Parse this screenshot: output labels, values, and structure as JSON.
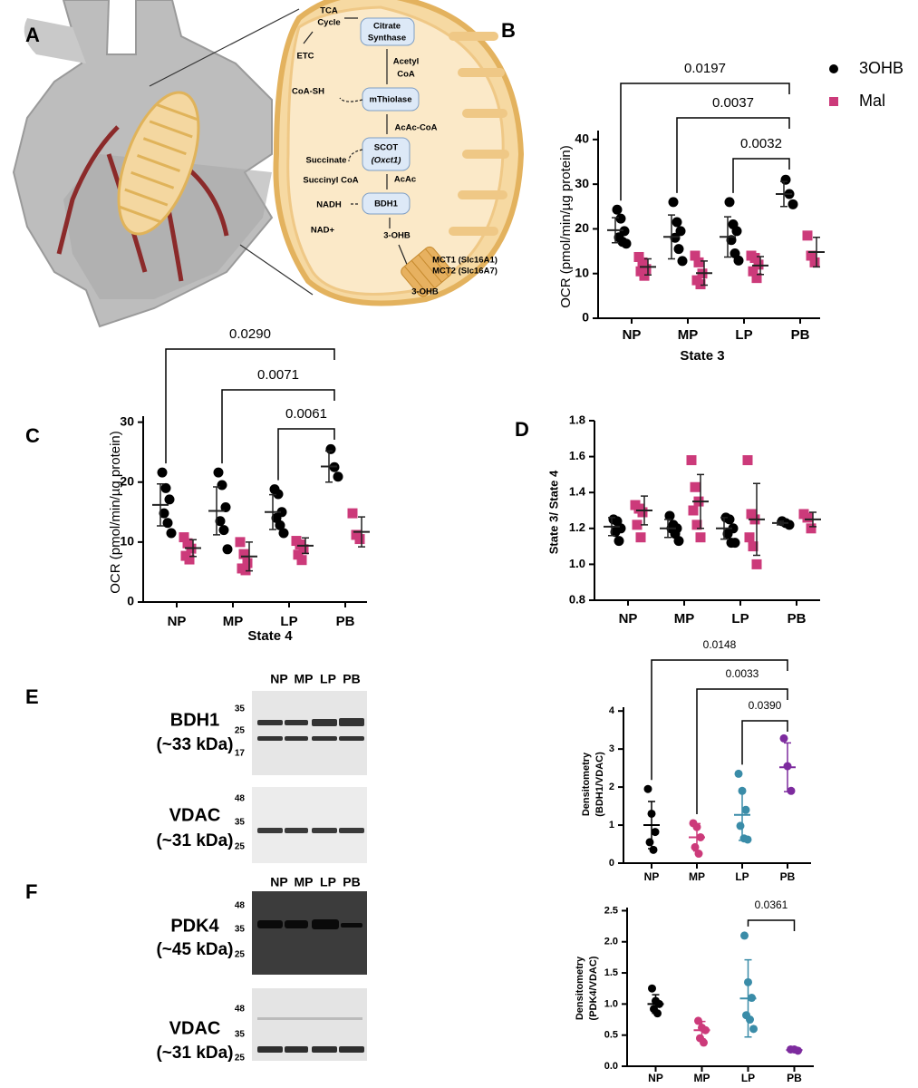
{
  "chart_data": [
    {
      "type": "dot",
      "ylabel": "OCR (pmol/min/µg protein)",
      "xlabel": "State 3",
      "legend": "right",
      "categories": [
        "NP",
        "MP",
        "LP",
        "PB"
      ],
      "ylim": [
        0,
        42
      ],
      "yticks": [
        0,
        10,
        20,
        30,
        40
      ],
      "annotations": [
        "0.0197",
        "0.0037",
        "0.0032"
      ],
      "series": [
        {
          "name": "3OHB",
          "color": "#000000",
          "marker": "circle",
          "points": [
            [
              24.3,
              22.3,
              19.5,
              18.1,
              17.1,
              16.7
            ],
            [
              26.0,
              21.5,
              19.5,
              18.0,
              15.5,
              12.8
            ],
            [
              26.0,
              21.0,
              19.5,
              17.5,
              14.5,
              12.9
            ],
            [
              31.0,
              27.8,
              25.5
            ]
          ],
          "means": [
            19.7,
            18.2,
            18.2,
            27.8
          ],
          "sds": [
            2.8,
            4.9,
            4.5,
            2.8
          ]
        },
        {
          "name": "Mal",
          "color": "#cc3a7a",
          "marker": "square",
          "points": [
            [
              13.7,
              12.5,
              11.0,
              10.5,
              9.5
            ],
            [
              14.0,
              12.5,
              10.0,
              8.5,
              7.6
            ],
            [
              14.0,
              13.5,
              12.0,
              10.5,
              9.0
            ],
            [
              18.5,
              14.0,
              12.5
            ]
          ],
          "means": [
            11.5,
            10.1,
            11.8,
            14.8
          ],
          "sds": [
            1.8,
            2.7,
            2.0,
            3.3
          ]
        }
      ]
    },
    {
      "type": "dot",
      "ylabel": "OCR (pmol/min/µg protein)",
      "xlabel": "State 4",
      "categories": [
        "NP",
        "MP",
        "LP",
        "PB"
      ],
      "ylim": [
        0,
        31
      ],
      "yticks": [
        0,
        10,
        20,
        30
      ],
      "annotations": [
        "0.0290",
        "0.0071",
        "0.0061"
      ],
      "series": [
        {
          "color": "#000000",
          "marker": "circle",
          "points": [
            [
              21.6,
              19.0,
              17.1,
              14.8,
              13.2,
              11.5
            ],
            [
              21.6,
              19.5,
              15.8,
              13.5,
              12.0,
              8.8
            ],
            [
              18.8,
              18.0,
              15.0,
              14.0,
              12.8,
              11.5
            ],
            [
              25.5,
              22.5,
              20.9
            ]
          ],
          "means": [
            16.2,
            15.2,
            15.0,
            22.6
          ],
          "sds": [
            3.5,
            4.0,
            2.9,
            2.6
          ]
        },
        {
          "color": "#cc3a7a",
          "marker": "square",
          "points": [
            [
              10.8,
              9.8,
              8.9,
              7.7,
              7.1
            ],
            [
              10.0,
              8.0,
              6.5,
              5.6,
              5.3
            ],
            [
              10.2,
              9.6,
              8.8,
              7.9,
              7.0
            ],
            [
              14.8,
              11.2,
              10.5
            ]
          ],
          "means": [
            9.0,
            7.6,
            9.4,
            11.7
          ],
          "sds": [
            1.4,
            2.4,
            1.3,
            2.5
          ]
        }
      ]
    },
    {
      "type": "dot",
      "ylabel": "State 3/ State 4",
      "categories": [
        "NP",
        "MP",
        "LP",
        "PB"
      ],
      "ylim": [
        0.8,
        1.8
      ],
      "yticks": [
        0.8,
        {
          "value": 1,
          "label": "1.0"
        },
        1.2,
        1.4,
        1.6,
        1.8
      ],
      "series": [
        {
          "color": "#000000",
          "marker": "circle",
          "points": [
            [
              1.25,
              1.24,
              1.2,
              1.18,
              1.13
            ],
            [
              1.27,
              1.22,
              1.2,
              1.2,
              1.17,
              1.13
            ],
            [
              1.26,
              1.25,
              1.2,
              1.17,
              1.12,
              1.12
            ],
            [
              1.24,
              1.23,
              1.22
            ]
          ],
          "means": [
            1.21,
            1.2,
            1.2,
            1.23
          ],
          "sds": [
            0.05,
            0.05,
            0.06,
            0.01
          ]
        },
        {
          "color": "#cc3a7a",
          "marker": "square",
          "points": [
            [
              1.33,
              1.31,
              1.29,
              1.22,
              1.15
            ],
            [
              1.58,
              1.43,
              1.35,
              1.3,
              1.22,
              1.15
            ],
            [
              1.58,
              1.28,
              1.25,
              1.15,
              1.1,
              1.0
            ],
            [
              1.28,
              1.26,
              1.2
            ]
          ],
          "means": [
            1.3,
            1.35,
            1.25,
            1.25
          ],
          "sds": [
            0.08,
            0.15,
            0.2,
            0.04
          ]
        }
      ]
    },
    {
      "type": "dot",
      "ylabel": [
        "Densitometry",
        "(BDH1/VDAC)"
      ],
      "categories": [
        "NP",
        "MP",
        "LP",
        "PB"
      ],
      "ylim": [
        0,
        4.1
      ],
      "yticks": [
        0,
        1,
        2,
        3,
        4
      ],
      "annotations": [
        "0.0148",
        "0.0033",
        "0.0390"
      ],
      "series": [
        {
          "colors": [
            "#000000",
            "#cc3a7a",
            "#3a8ca8",
            "#7d2b9e"
          ],
          "marker": "circle",
          "points": [
            [
              1.95,
              1.3,
              0.82,
              0.55,
              0.35
            ],
            [
              1.05,
              0.95,
              0.68,
              0.42,
              0.25
            ],
            [
              2.35,
              1.9,
              1.4,
              0.98,
              0.65,
              0.62
            ],
            [
              3.28,
              2.55,
              1.9
            ]
          ],
          "means": [
            1.0,
            0.68,
            1.27,
            2.52
          ],
          "sds": [
            0.62,
            0.36,
            0.67,
            0.64
          ]
        }
      ]
    },
    {
      "type": "dot",
      "ylabel": [
        "Densitometry",
        "(PDK4/VDAC)"
      ],
      "categories": [
        "NP",
        "MP",
        "LP",
        "PB"
      ],
      "ylim": [
        0,
        2.55
      ],
      "yticks": [
        {
          "value": 0,
          "label": "0.0"
        },
        0.5,
        {
          "value": 1,
          "label": "1.0"
        },
        1.5,
        {
          "value": 2,
          "label": "2.0"
        },
        2.5
      ],
      "annotations": [
        "0.0361"
      ],
      "series": [
        {
          "colors": [
            "#000000",
            "#cc3a7a",
            "#3a8ca8",
            "#7d2b9e"
          ],
          "marker": "circle",
          "points": [
            [
              1.25,
              1.05,
              1.0,
              0.92,
              0.85
            ],
            [
              0.73,
              0.62,
              0.58,
              0.45,
              0.38
            ],
            [
              2.1,
              1.35,
              1.1,
              0.82,
              0.75,
              0.6
            ],
            [
              0.27,
              0.27,
              0.25
            ]
          ],
          "means": [
            1.0,
            0.58,
            1.09,
            0.26
          ],
          "sds": [
            0.15,
            0.14,
            0.62,
            0.02
          ]
        }
      ]
    }
  ],
  "figure": {
    "panel_labels": [
      "A",
      "B",
      "C",
      "D",
      "E",
      "F"
    ],
    "diagram": [
      "TCA",
      "Cycle",
      "ETC",
      "CoA-SH",
      "Succinate",
      "Succinyl CoA",
      "NADH",
      "NAD+",
      "Citrate",
      "Synthase",
      "Acetyl",
      "CoA",
      "mThiolase",
      "AcAc-CoA",
      "SCOT",
      "(Oxct1)",
      "AcAc",
      "BDH1",
      "3-OHB",
      "MCT1 (Slc16A1)",
      "MCT2 (Slc16A7)",
      "3-OHB"
    ],
    "blots": [
      {
        "lanes": [
          "NP",
          "MP",
          "LP",
          "PB"
        ],
        "proteins": [
          {
            "name": "BDH1",
            "size": "(~33 kDa)",
            "markers": [
              35,
              25,
              17
            ]
          },
          {
            "name": "VDAC",
            "size": "(~31 kDa)",
            "markers": [
              48,
              35,
              25
            ]
          }
        ]
      },
      {
        "lanes": [
          "NP",
          "MP",
          "LP",
          "PB"
        ],
        "proteins": [
          {
            "name": "PDK4",
            "size": "(~45 kDa)",
            "markers": [
              48,
              35,
              25
            ]
          },
          {
            "name": "VDAC",
            "size": "(~31 kDa)",
            "markers": [
              48,
              35,
              25
            ]
          }
        ]
      }
    ]
  }
}
